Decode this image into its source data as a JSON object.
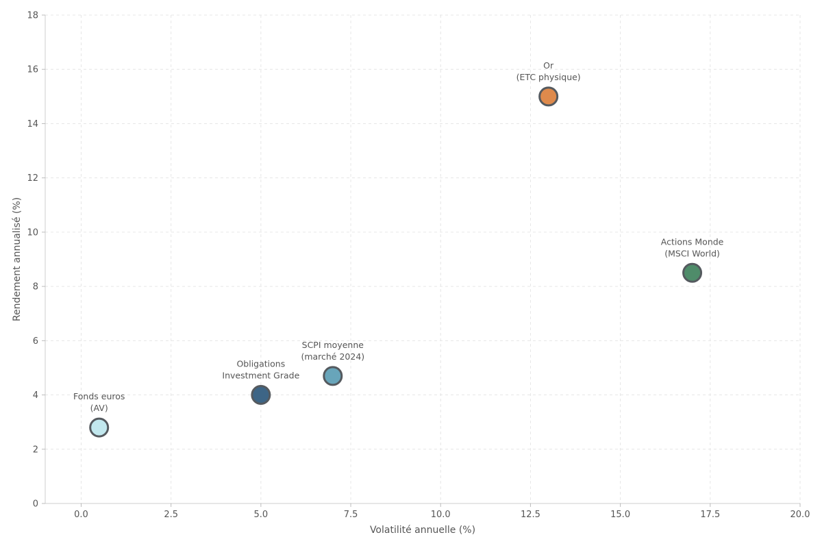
{
  "chart_data": {
    "type": "scatter",
    "title": "",
    "xlabel": "Volatilité annuelle (%)",
    "ylabel": "Rendement annualisé (%)",
    "xlim": [
      -1,
      20
    ],
    "ylim": [
      0,
      18
    ],
    "xticks": [
      0.0,
      2.5,
      5.0,
      7.5,
      10.0,
      12.5,
      15.0,
      17.5,
      20.0
    ],
    "xtick_labels": [
      "0.0",
      "2.5",
      "5.0",
      "7.5",
      "10.0",
      "12.5",
      "15.0",
      "17.5",
      "20.0"
    ],
    "yticks": [
      0,
      2,
      4,
      6,
      8,
      10,
      12,
      14,
      16,
      18
    ],
    "ytick_labels": [
      "0",
      "2",
      "4",
      "6",
      "8",
      "10",
      "12",
      "14",
      "16",
      "18"
    ],
    "grid": true,
    "points": [
      {
        "name": "fonds-euros",
        "label_lines": [
          "Fonds euros",
          "(AV)"
        ],
        "x": 0.5,
        "y": 2.8,
        "color": "#c2e8ee"
      },
      {
        "name": "obligations",
        "label_lines": [
          "Obligations",
          "Investment Grade"
        ],
        "x": 5.0,
        "y": 4.0,
        "color": "#3d6586"
      },
      {
        "name": "scpi",
        "label_lines": [
          "SCPI moyenne",
          "(marché 2024)"
        ],
        "x": 7.0,
        "y": 4.7,
        "color": "#68a5ba"
      },
      {
        "name": "or",
        "label_lines": [
          "Or",
          "(ETC physique)"
        ],
        "x": 13.0,
        "y": 15.0,
        "color": "#de8a4c"
      },
      {
        "name": "actions-monde",
        "label_lines": [
          "Actions Monde",
          "(MSCI World)"
        ],
        "x": 17.0,
        "y": 8.5,
        "color": "#4f8c6a"
      }
    ]
  }
}
